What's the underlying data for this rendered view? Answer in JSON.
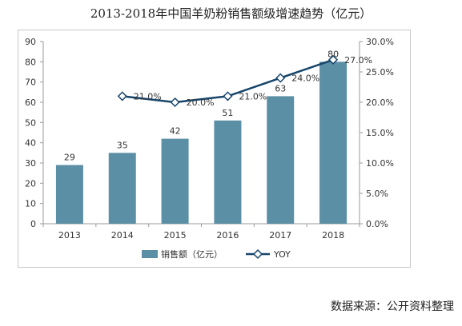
{
  "title": "2013-2018年中国羊奶粉销售额级增速趋势（亿元）",
  "source": "数据来源：公开资料整理",
  "chart_data": {
    "type": "bar",
    "categories": [
      "2013",
      "2014",
      "2015",
      "2016",
      "2017",
      "2018"
    ],
    "series": [
      {
        "name": "销售额（亿元）",
        "type": "bar",
        "axis": "left",
        "values": [
          29,
          35,
          42,
          51,
          63,
          80
        ],
        "labels": [
          "29",
          "35",
          "42",
          "51",
          "63",
          "80"
        ],
        "color": "#5b8fa6"
      },
      {
        "name": "YOY",
        "type": "line",
        "axis": "right",
        "values": [
          null,
          0.21,
          0.2,
          0.21,
          0.24,
          0.27
        ],
        "labels": [
          "",
          "21.0%",
          "20.0%",
          "21.0%",
          "24.0%",
          "27.0%"
        ],
        "color": "#17456b",
        "marker": "diamond"
      }
    ],
    "y_left": {
      "min": 0,
      "max": 90,
      "step": 10,
      "ticks": [
        "0",
        "10",
        "20",
        "30",
        "40",
        "50",
        "60",
        "70",
        "80",
        "90"
      ]
    },
    "y_right": {
      "min": 0,
      "max": 0.3,
      "step": 0.05,
      "ticks": [
        "0.0%",
        "5.0%",
        "10.0%",
        "15.0%",
        "20.0%",
        "25.0%",
        "30.0%"
      ]
    },
    "grid": false,
    "legend": "bottom"
  }
}
